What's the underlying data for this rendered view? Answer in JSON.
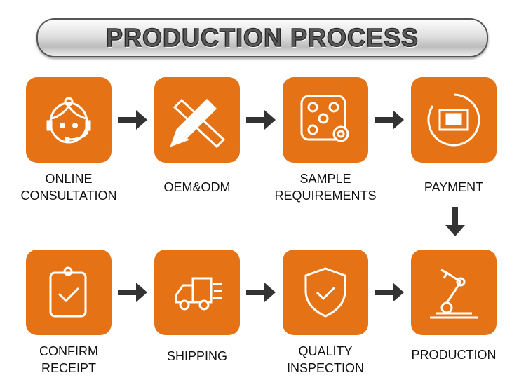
{
  "title": "PRODUCTION PROCESS",
  "accent_color": "#e57316",
  "arrow_color": "#333333",
  "steps": [
    {
      "label": "ONLINE\nCONSULTATION",
      "icon": "headset-person-icon"
    },
    {
      "label": "OEM&ODM",
      "icon": "pencil-ruler-icon"
    },
    {
      "label": "SAMPLE\nREQUIREMENTS",
      "icon": "sample-gear-icon"
    },
    {
      "label": "PAYMENT",
      "icon": "wallet-yen-icon"
    },
    {
      "label": "PRODUCTION",
      "icon": "robot-arm-icon"
    },
    {
      "label": "QUALITY\nINSPECTION",
      "icon": "shield-check-icon"
    },
    {
      "label": "SHIPPING",
      "icon": "truck-icon"
    },
    {
      "label": "CONFIRM\nRECEIPT",
      "icon": "clipboard-check-icon"
    }
  ]
}
